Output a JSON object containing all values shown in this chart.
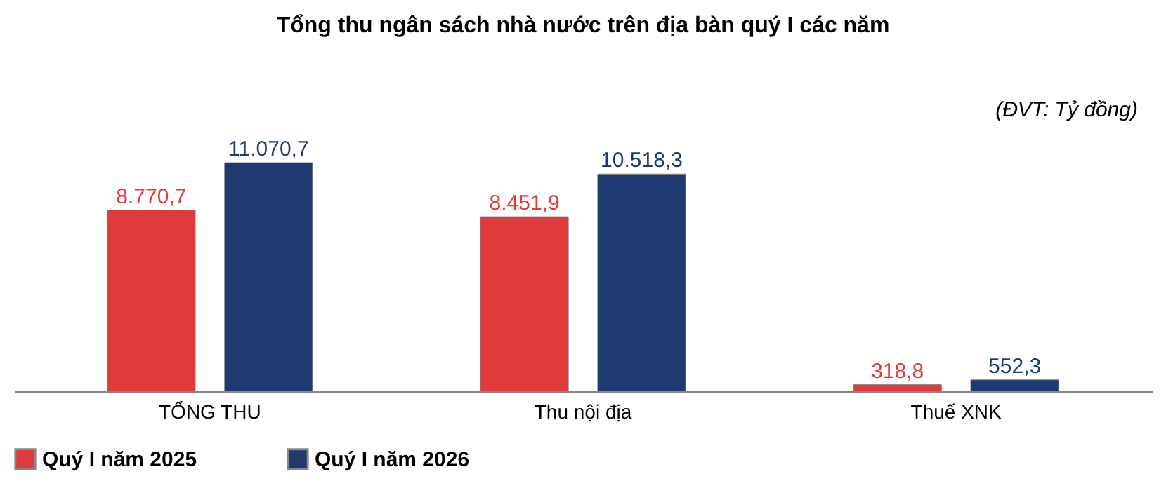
{
  "chart_data": {
    "type": "bar",
    "title": "Tổng thu ngân sách nhà nước trên địa bàn quý I các năm",
    "annotations": [
      "(ĐVT: Tỷ đồng)"
    ],
    "categories": [
      "TỔNG THU",
      "Thu nội địa",
      "Thuế XNK"
    ],
    "series": [
      {
        "name": "Quý I năm 2025",
        "color": "#e03a3a",
        "values": [
          8770.7,
          8451.9,
          318.8
        ],
        "value_labels": [
          "8.770,7",
          "8.451,9",
          "318,8"
        ]
      },
      {
        "name": "Quý I năm 2026",
        "color": "#1f3a70",
        "values": [
          11070.7,
          10518.3,
          552.3
        ],
        "value_labels": [
          "11.070,7",
          "10.518,3",
          "552,3"
        ]
      }
    ],
    "legend": "bottom",
    "grid": false
  }
}
